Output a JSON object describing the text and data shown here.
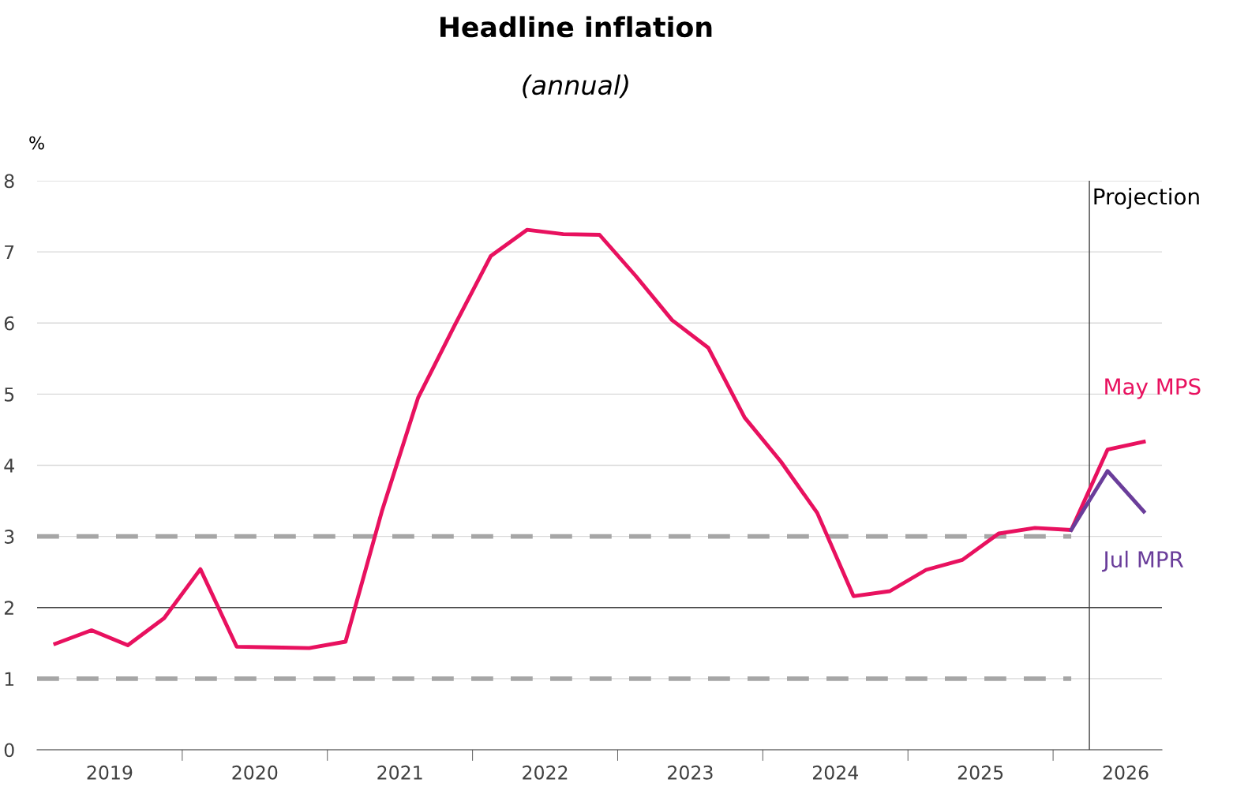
{
  "chart_data": {
    "type": "line",
    "title": "Headline inflation",
    "subtitle": "(annual)",
    "ylabel": "%",
    "x": [
      2019.125,
      2019.375,
      2019.625,
      2019.875,
      2020.125,
      2020.375,
      2020.625,
      2020.875,
      2021.125,
      2021.375,
      2021.625,
      2021.875,
      2022.125,
      2022.375,
      2022.625,
      2022.875,
      2023.125,
      2023.375,
      2023.625,
      2023.875,
      2024.125,
      2024.375,
      2024.625,
      2024.875,
      2025.125,
      2025.375,
      2025.625,
      2025.875,
      2026.125,
      2026.375,
      2026.625
    ],
    "series": [
      {
        "color": "#a6a6a6",
        "line_style": "dashed",
        "x": [
          2019.0,
          2026.125
        ],
        "values": [
          3,
          3
        ]
      },
      {
        "color": "#a6a6a6",
        "line_style": "dashed",
        "x": [
          2019.0,
          2026.125
        ],
        "values": [
          1,
          1
        ]
      },
      {
        "name": "May MPS",
        "color": "#e8115f",
        "line_style": "solid",
        "values": [
          1.49,
          1.68,
          1.47,
          1.85,
          2.54,
          1.45,
          1.44,
          1.43,
          1.52,
          3.35,
          4.95,
          5.96,
          6.94,
          7.31,
          7.25,
          7.24,
          6.66,
          6.04,
          5.65,
          4.67,
          4.05,
          3.33,
          2.16,
          2.23,
          2.53,
          2.67,
          3.04,
          3.12,
          3.09,
          4.22,
          4.33
        ]
      },
      {
        "name": "Jul MPR",
        "color": "#6a3d9a",
        "line_style": "solid",
        "x": [
          2026.125,
          2026.375,
          2026.625
        ],
        "values": [
          3.09,
          3.92,
          3.35
        ]
      }
    ],
    "ref_lines": [
      {
        "axis": "y",
        "value": 2,
        "label": null,
        "color": "#404040",
        "line_style": "solid"
      },
      {
        "axis": "x",
        "value": 2026.25,
        "label": "Projection",
        "color": "#404040",
        "line_style": "solid"
      }
    ],
    "xlim": [
      2019.0,
      2026.75
    ],
    "xticks": [
      {
        "value": 2019.5,
        "label": "2019"
      },
      {
        "value": 2020.5,
        "label": "2020"
      },
      {
        "value": 2021.5,
        "label": "2021"
      },
      {
        "value": 2022.5,
        "label": "2022"
      },
      {
        "value": 2023.5,
        "label": "2023"
      },
      {
        "value": 2024.5,
        "label": "2024"
      },
      {
        "value": 2025.5,
        "label": "2025"
      },
      {
        "value": 2026.5,
        "label": "2026"
      },
      {
        "value": 2020,
        "label": null
      },
      {
        "value": 2021,
        "label": null
      },
      {
        "value": 2022,
        "label": null
      },
      {
        "value": 2023,
        "label": null
      },
      {
        "value": 2024,
        "label": null
      },
      {
        "value": 2025,
        "label": null
      },
      {
        "value": 2026,
        "label": null
      }
    ],
    "ylim": [
      0,
      8
    ],
    "yticks": [
      0,
      1,
      2,
      3,
      4,
      5,
      6,
      7,
      8
    ],
    "grid": "y",
    "legend": false,
    "marker": "none"
  }
}
